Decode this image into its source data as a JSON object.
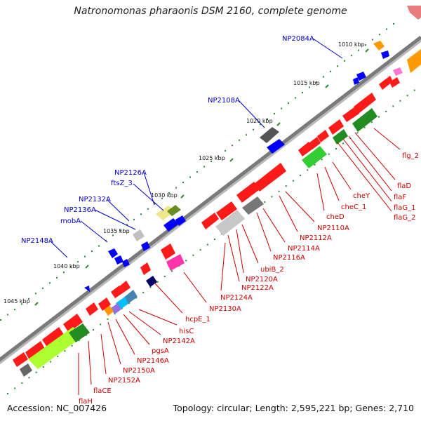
{
  "title": "Natronomonas pharaonis DSM 2160, complete genome",
  "footer": {
    "accession": "Accession: NC_007426",
    "topology": "Topology: circular; Length: 2,595,221 bp; Genes: 2,710"
  },
  "colors": {
    "backbone": "#7a7a7a",
    "cds": "#ff1a1a",
    "upper_label": "#0000cc",
    "lower_label": "#cc0000",
    "tick": "#2e8b2e"
  },
  "kbp_markers": [
    {
      "label": "1010 kbp",
      "tick": [
        523,
        72
      ],
      "text": [
        482,
        57
      ]
    },
    {
      "label": "1015 kbp",
      "tick": [
        466,
        123
      ],
      "text": [
        418,
        112
      ]
    },
    {
      "label": "1020 kbp",
      "tick": [
        397,
        177
      ],
      "text": [
        351,
        166
      ]
    },
    {
      "label": "1025 kbp",
      "tick": [
        330,
        228
      ],
      "text": [
        283,
        219
      ]
    },
    {
      "label": "1030 kbp",
      "tick": [
        260,
        280
      ],
      "text": [
        215,
        272
      ]
    },
    {
      "label": "1035 kbp",
      "tick": [
        194,
        333
      ],
      "text": [
        147,
        323
      ]
    },
    {
      "label": "1040 kbp",
      "tick": [
        124,
        380
      ],
      "text": [
        76,
        373
      ]
    },
    {
      "label": "1045 kbp",
      "tick": [
        52,
        433
      ],
      "text": [
        5,
        423
      ]
    }
  ],
  "upper_labels": [
    {
      "name": "NP2084A",
      "text": [
        402,
        50
      ],
      "line": [
        [
          446,
          55
        ],
        [
          488,
          83
        ]
      ]
    },
    {
      "name": "NP2108A",
      "text": [
        296,
        138
      ],
      "line": [
        [
          340,
          143
        ],
        [
          377,
          182
        ]
      ]
    },
    {
      "name": "NP2126A",
      "text": [
        163,
        241
      ],
      "line": [
        [
          205,
          246
        ],
        [
          220,
          292
        ]
      ]
    },
    {
      "name": "ftsZ_3",
      "text": [
        158,
        256
      ],
      "line": [
        [
          190,
          262
        ],
        [
          233,
          300
        ]
      ]
    },
    {
      "name": "NP2132A",
      "text": [
        112,
        279
      ],
      "line": [
        [
          153,
          285
        ],
        [
          184,
          315
        ]
      ]
    },
    {
      "name": "NP2136A",
      "text": [
        91,
        294
      ],
      "line": [
        [
          135,
          299
        ],
        [
          193,
          327
        ]
      ]
    },
    {
      "name": "mobA",
      "text": [
        86,
        310
      ],
      "line": [
        [
          115,
          315
        ],
        [
          153,
          345
        ]
      ]
    },
    {
      "name": "NP2148A",
      "text": [
        30,
        338
      ],
      "line": [
        [
          72,
          344
        ],
        [
          96,
          367
        ]
      ]
    }
  ],
  "lower_labels": [
    {
      "name": "flg_2",
      "text": [
        573,
        217
      ],
      "line": [
        [
          533,
          183
        ],
        [
          570,
          213
        ]
      ]
    },
    {
      "name": "flaD",
      "text": [
        566,
        260
      ],
      "line": [
        [
          506,
          189
        ],
        [
          563,
          256
        ]
      ]
    },
    {
      "name": "flaF",
      "text": [
        561,
        276
      ],
      "line": [
        [
          497,
          194
        ],
        [
          558,
          272
        ]
      ]
    },
    {
      "name": "flaG_1",
      "text": [
        561,
        291
      ],
      "line": [
        [
          489,
          198
        ],
        [
          558,
          287
        ]
      ]
    },
    {
      "name": "flaG_2",
      "text": [
        561,
        305
      ],
      "line": [
        [
          481,
          203
        ],
        [
          558,
          301
        ]
      ]
    },
    {
      "name": "cheY",
      "text": [
        503,
        274
      ],
      "line": [
        [
          474,
          231
        ],
        [
          500,
          270
        ]
      ]
    },
    {
      "name": "cheC_1",
      "text": [
        486,
        290
      ],
      "line": [
        [
          463,
          238
        ],
        [
          483,
          286
        ]
      ]
    },
    {
      "name": "cheD",
      "text": [
        465,
        304
      ],
      "line": [
        [
          452,
          247
        ],
        [
          462,
          300
        ]
      ]
    },
    {
      "name": "NP2110A",
      "text": [
        452,
        320
      ],
      "line": [
        [
          407,
          273
        ],
        [
          448,
          316
        ]
      ]
    },
    {
      "name": "NP2112A",
      "text": [
        427,
        334
      ],
      "line": [
        [
          398,
          279
        ],
        [
          424,
          330
        ]
      ]
    },
    {
      "name": "NP2114A",
      "text": [
        410,
        349
      ],
      "line": [
        [
          375,
          297
        ],
        [
          406,
          345
        ]
      ]
    },
    {
      "name": "NP2116A",
      "text": [
        389,
        362
      ],
      "line": [
        [
          366,
          303
        ],
        [
          386,
          358
        ]
      ]
    },
    {
      "name": "ubiB_2",
      "text": [
        371,
        379
      ],
      "line": [
        [
          345,
          320
        ],
        [
          368,
          375
        ]
      ]
    },
    {
      "name": "NP2120A",
      "text": [
        350,
        393
      ],
      "line": [
        [
          337,
          327
        ],
        [
          347,
          389
        ]
      ]
    },
    {
      "name": "NP2122A",
      "text": [
        344,
        405
      ],
      "line": [
        [
          325,
          335
        ],
        [
          341,
          401
        ]
      ]
    },
    {
      "name": "NP2124A",
      "text": [
        314,
        419
      ],
      "line": [
        [
          321,
          346
        ],
        [
          315,
          414
        ]
      ]
    },
    {
      "name": "NP2130A",
      "text": [
        298,
        435
      ],
      "line": [
        [
          262,
          388
        ],
        [
          294,
          431
        ]
      ]
    },
    {
      "name": "hcpE_1",
      "text": [
        264,
        450
      ],
      "line": [
        [
          220,
          403
        ],
        [
          260,
          446
        ]
      ]
    },
    {
      "name": "hisC",
      "text": [
        255,
        467
      ],
      "line": [
        [
          198,
          441
        ],
        [
          252,
          463
        ]
      ]
    },
    {
      "name": "NP2142A",
      "text": [
        232,
        481
      ],
      "line": [
        [
          184,
          444
        ],
        [
          229,
          477
        ]
      ]
    },
    {
      "name": "pgsA",
      "text": [
        216,
        495
      ],
      "line": [
        [
          176,
          448
        ],
        [
          213,
          491
        ]
      ]
    },
    {
      "name": "NP2146A",
      "text": [
        195,
        509
      ],
      "line": [
        [
          165,
          455
        ],
        [
          192,
          505
        ]
      ]
    },
    {
      "name": "NP2150A",
      "text": [
        175,
        523
      ],
      "line": [
        [
          154,
          459
        ],
        [
          172,
          519
        ]
      ]
    },
    {
      "name": "NP2152A",
      "text": [
        154,
        537
      ],
      "line": [
        [
          144,
          476
        ],
        [
          151,
          533
        ]
      ]
    },
    {
      "name": "flaCE",
      "text": [
        133,
        552
      ],
      "line": [
        [
          126,
          486
        ],
        [
          130,
          548
        ]
      ]
    },
    {
      "name": "flaH",
      "text": [
        112,
        567
      ],
      "line": [
        [
          112,
          503
        ],
        [
          112,
          563
        ]
      ]
    }
  ]
}
